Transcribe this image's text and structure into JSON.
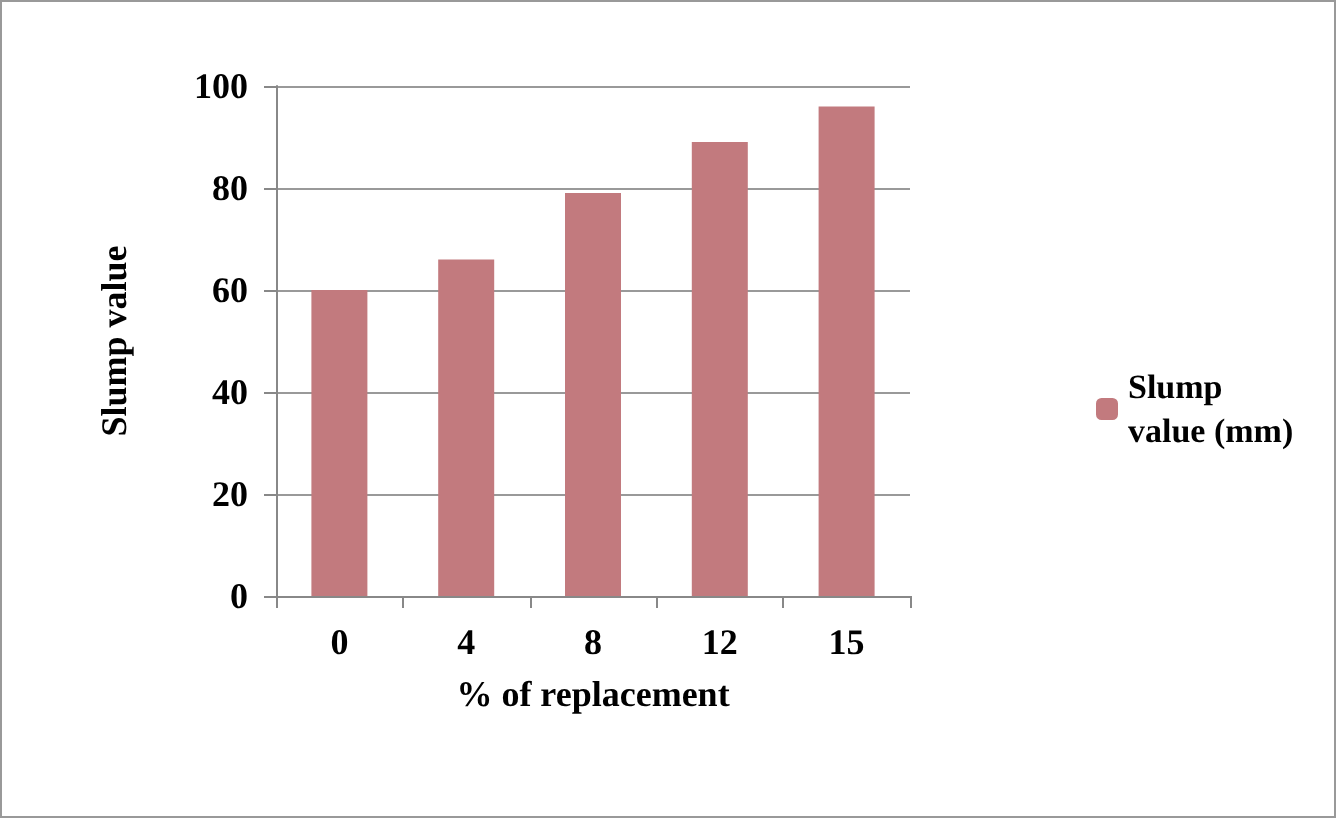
{
  "chart_data": {
    "type": "bar",
    "xlabel": "% of replacement",
    "ylabel": "Slump value",
    "categories": [
      "0",
      "4",
      "8",
      "12",
      "15"
    ],
    "series": [
      {
        "name": "Slump value (mm)",
        "color": "#c27a7e",
        "values": [
          60,
          66,
          79,
          89,
          96
        ]
      }
    ],
    "ylim": [
      0,
      100
    ],
    "yticks": [
      0,
      20,
      40,
      60,
      80,
      100
    ],
    "grid": "y",
    "legend": "right"
  }
}
